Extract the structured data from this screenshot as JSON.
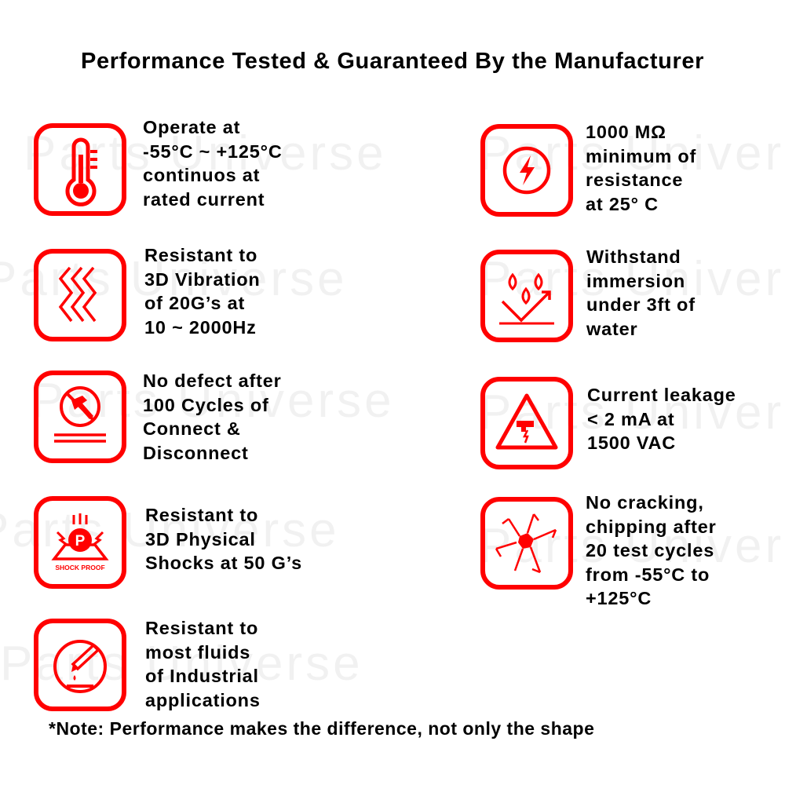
{
  "title": "Performance Tested & Guaranteed By the Manufacturer",
  "watermark": "Parts Universe",
  "accent_color": "#ff0000",
  "features_left": [
    {
      "icon": "thermometer-icon",
      "lines": [
        "Operate at",
        "-55°C ~ +125°C",
        "continuos at",
        "rated current"
      ]
    },
    {
      "icon": "vibration-icon",
      "lines": [
        "Resistant to",
        "3D Vibration",
        "of 20G’s at",
        "10 ~ 2000Hz"
      ]
    },
    {
      "icon": "hammer-prohibited-icon",
      "lines": [
        "No defect after",
        "100 Cycles of",
        "Connect &",
        "Disconnect"
      ]
    },
    {
      "icon": "shock-proof-icon",
      "badge": "SHOCK PROOF",
      "lines": [
        "Resistant to",
        "3D Physical",
        "Shocks at 50 G’s"
      ]
    },
    {
      "icon": "test-tube-fluid-icon",
      "lines": [
        "Resistant to",
        "most fluids",
        "of Industrial",
        "applications"
      ]
    }
  ],
  "features_right": [
    {
      "icon": "lightning-icon",
      "lines": [
        "1000 MΩ",
        "minimum of",
        "resistance",
        "at 25° C"
      ]
    },
    {
      "icon": "water-drops-icon",
      "lines": [
        "Withstand",
        "immersion",
        "under 3ft of",
        "water"
      ]
    },
    {
      "icon": "leakage-warning-icon",
      "lines": [
        "Current leakage",
        "< 2 mA at",
        "1500 VAC"
      ]
    },
    {
      "icon": "cracked-glass-icon",
      "lines": [
        "No cracking,",
        "chipping after",
        "20 test cycles",
        "from -55°C to",
        "+125°C"
      ]
    }
  ],
  "note": "*Note: Performance makes the difference, not only the shape"
}
